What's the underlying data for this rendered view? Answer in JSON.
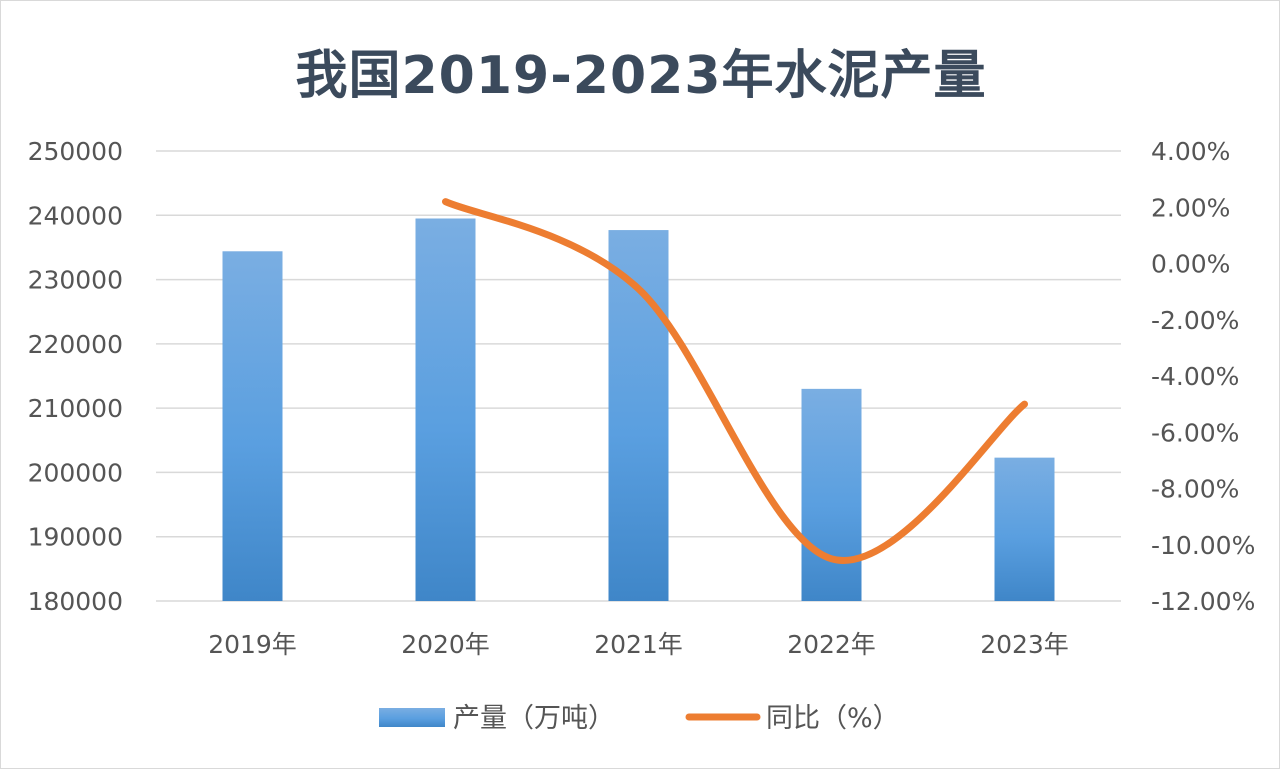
{
  "chart_data": {
    "type": "bar",
    "title": "我国2019-2023年水泥产量",
    "categories": [
      "2019年",
      "2020年",
      "2021年",
      "2022年",
      "2023年"
    ],
    "series": [
      {
        "name": "产量（万吨）",
        "type": "bar",
        "axis": "left",
        "values": [
          234400,
          239500,
          237700,
          213000,
          202300
        ]
      },
      {
        "name": "同比（%）",
        "type": "line",
        "axis": "right",
        "values": [
          null,
          2.2,
          -0.9,
          -10.5,
          -5.0
        ]
      }
    ],
    "y_left": {
      "min": 180000,
      "max": 250000,
      "step": 10000,
      "ticks": [
        "180000",
        "190000",
        "200000",
        "210000",
        "220000",
        "230000",
        "240000",
        "250000"
      ]
    },
    "y_right": {
      "min": -12,
      "max": 4,
      "step": 2,
      "ticks": [
        "-12.00%",
        "-10.00%",
        "-8.00%",
        "-6.00%",
        "-4.00%",
        "-2.00%",
        "0.00%",
        "2.00%",
        "4.00%"
      ]
    },
    "grid": true,
    "legend_position": "bottom",
    "colors": {
      "bar_top": "#7aaee2",
      "bar_mid": "#5a9fe0",
      "bar_bottom": "#3f86c8",
      "line": "#ed7d31",
      "grid": "#d9d9d9"
    }
  }
}
